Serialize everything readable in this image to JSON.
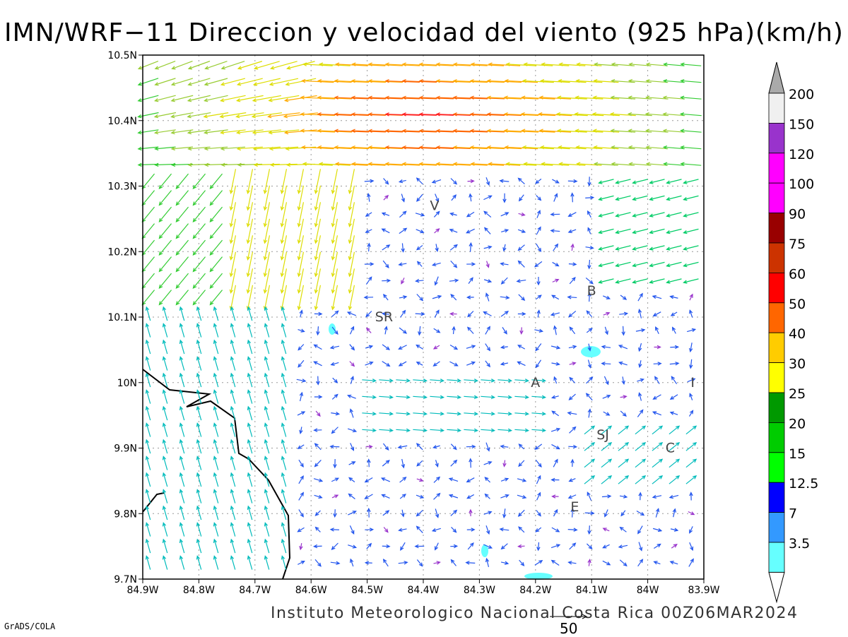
{
  "title": "IMN/WRF−11 Direccion y velocidad del viento (925 hPa)(km/h)",
  "footer": "Instituto Meteorologico Nacional Costa Rica 00Z06MAR2024",
  "software": "GrADS/COLA",
  "reference_vector": {
    "value": "50"
  },
  "map": {
    "lon_range": [
      -84.9,
      -83.9
    ],
    "lat_range": [
      9.7,
      10.5
    ],
    "lon_ticks": [
      "84.9W",
      "84.8W",
      "84.7W",
      "84.6W",
      "84.5W",
      "84.4W",
      "84.3W",
      "84.2W",
      "84.1W",
      "84W",
      "83.9W"
    ],
    "lat_ticks": [
      "9.7N",
      "9.8N",
      "9.9N",
      "10N",
      "10.1N",
      "10.2N",
      "10.3N",
      "10.4N",
      "10.5N"
    ],
    "grid": true,
    "station_labels": [
      {
        "label": "V",
        "lon": -84.38,
        "lat": 10.27
      },
      {
        "label": "B",
        "lon": -84.1,
        "lat": 10.14
      },
      {
        "label": "SR",
        "lon": -84.47,
        "lat": 10.1
      },
      {
        "label": "A",
        "lon": -84.2,
        "lat": 10.0
      },
      {
        "label": "I",
        "lon": -83.92,
        "lat": 10.0
      },
      {
        "label": "SJ",
        "lon": -84.08,
        "lat": 9.92
      },
      {
        "label": "C",
        "lon": -83.96,
        "lat": 9.9
      },
      {
        "label": "E",
        "lon": -84.13,
        "lat": 9.81
      }
    ]
  },
  "colorbar": {
    "labels": [
      "3.5",
      "7",
      "12.5",
      "15",
      "20",
      "25",
      "30",
      "40",
      "50",
      "60",
      "75",
      "90",
      "100",
      "120",
      "150",
      "200"
    ],
    "colors": [
      "#66ffff",
      "#3399ff",
      "#0000ff",
      "#00ff00",
      "#00cc00",
      "#009900",
      "#ffff00",
      "#ffcc00",
      "#ff6600",
      "#ff0000",
      "#cc3300",
      "#990000",
      "#ff00ff",
      "#ff00ff",
      "#9933cc",
      "#f0f0f0"
    ]
  }
}
